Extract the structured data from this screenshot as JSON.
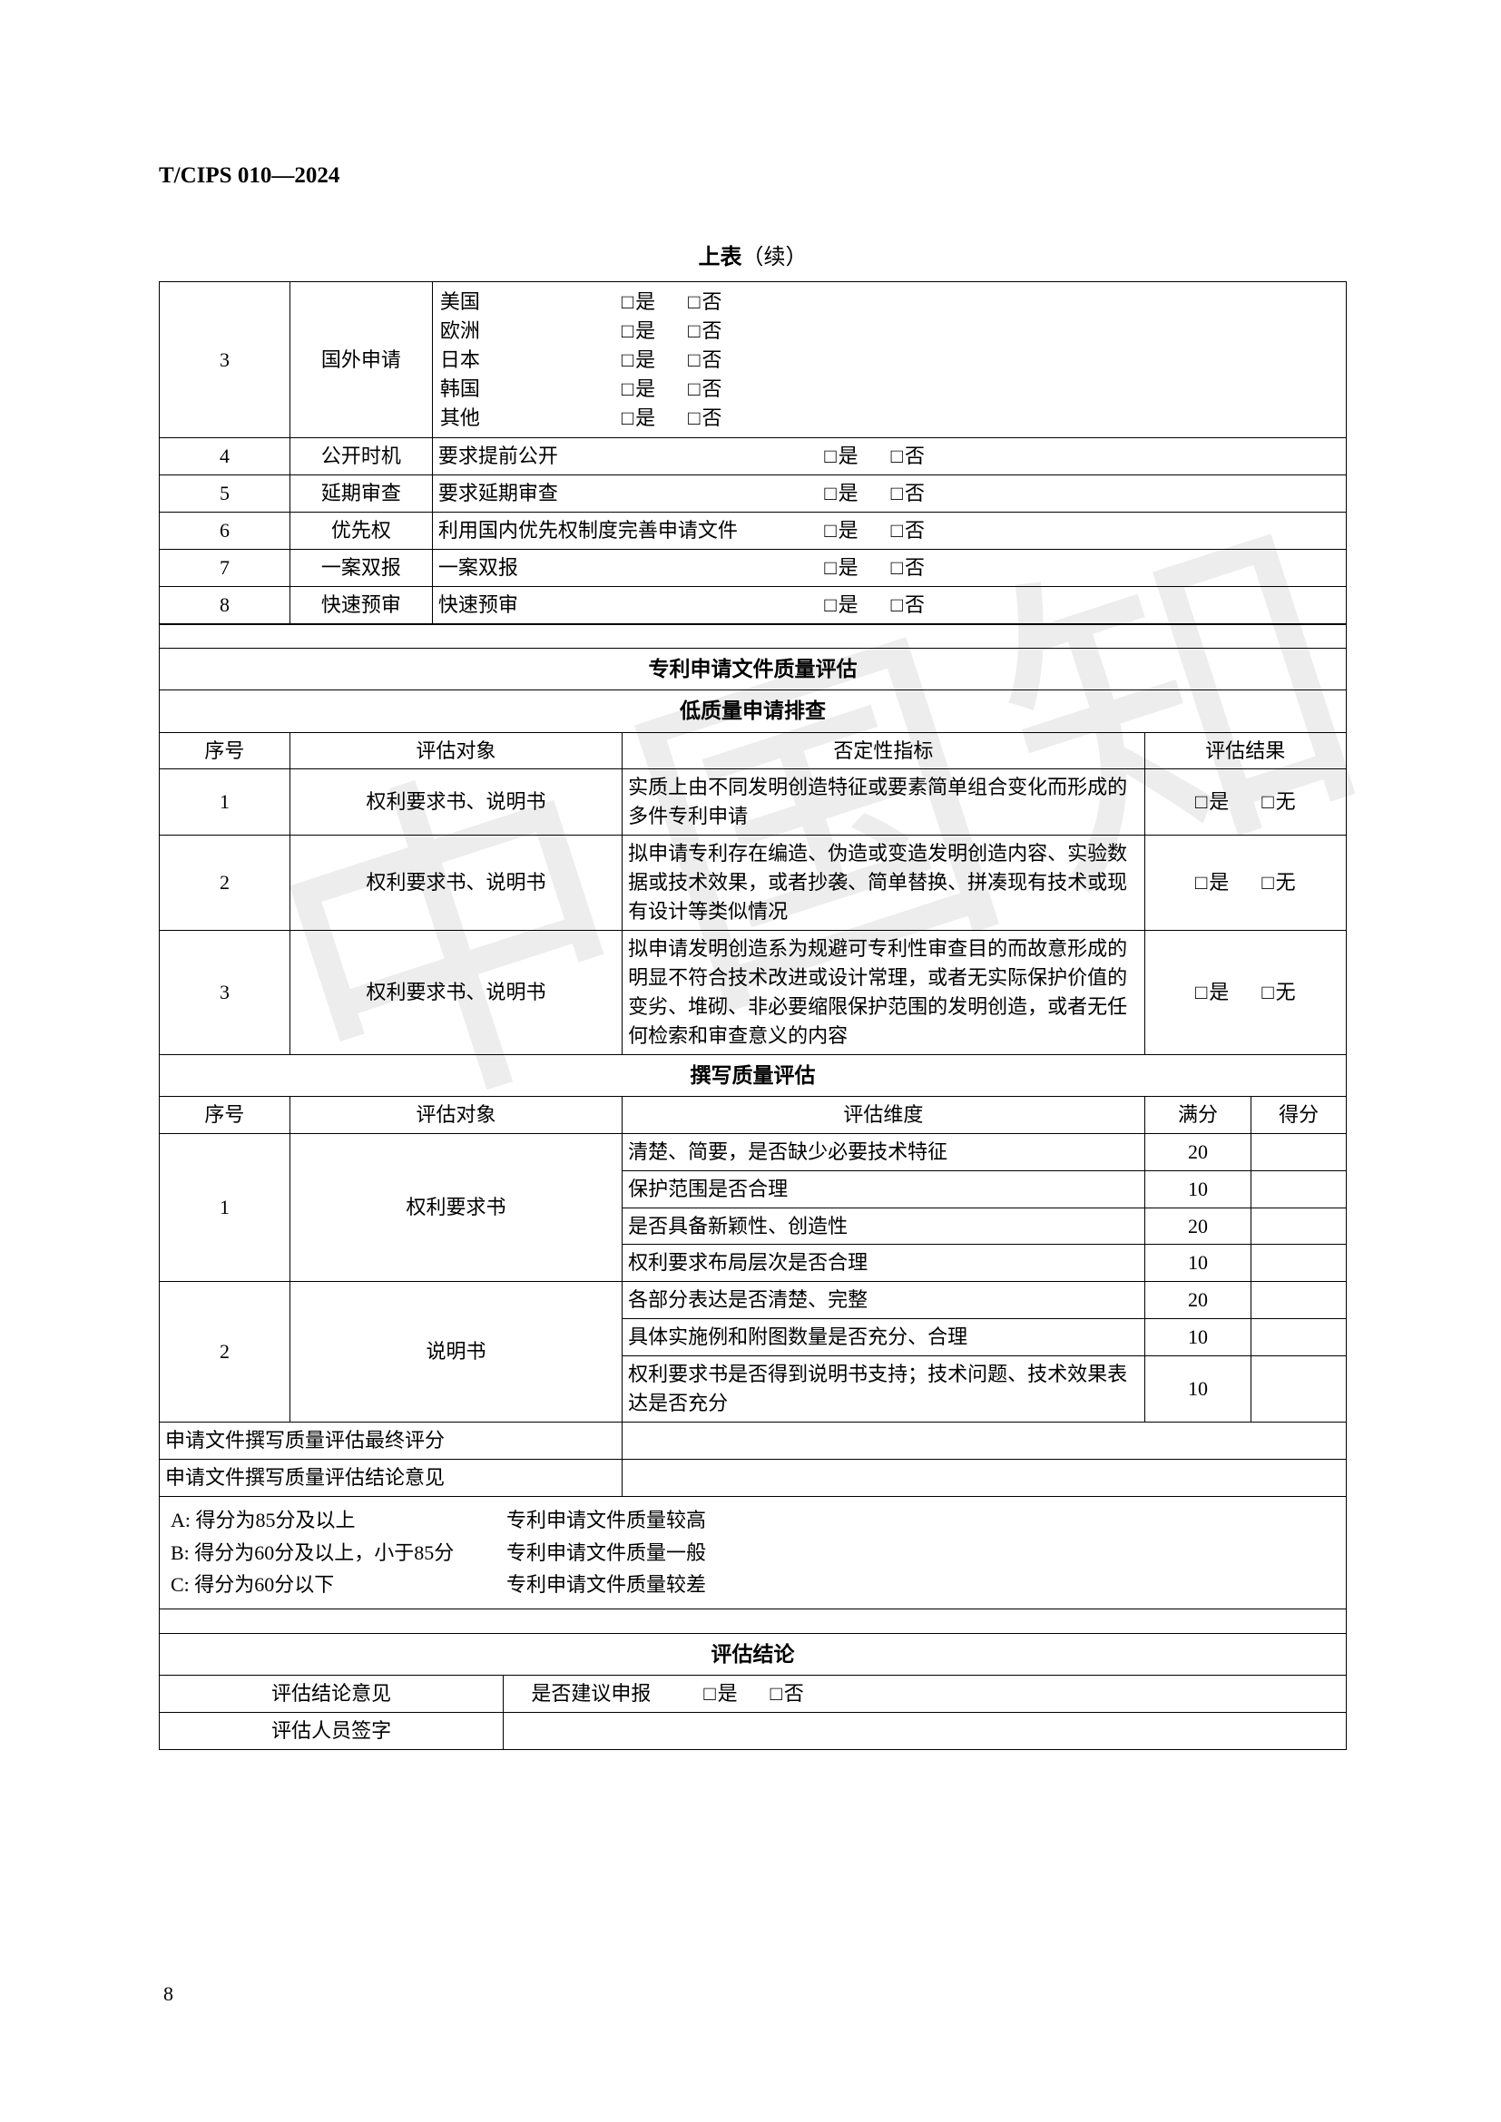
{
  "header_code": "T/CIPS 010—2024",
  "table_title_bold": "上表",
  "table_title_paren": "（续）",
  "checkbox_glyph": "□",
  "yes": "是",
  "no": "否",
  "wu": "无",
  "countries": [
    "美国",
    "欧洲",
    "日本",
    "韩国",
    "其他"
  ],
  "top_rows": [
    {
      "num": "3",
      "type": "国外申请"
    },
    {
      "num": "4",
      "type": "公开时机",
      "content": "要求提前公开"
    },
    {
      "num": "5",
      "type": "延期审查",
      "content": "要求延期审查"
    },
    {
      "num": "6",
      "type": "优先权",
      "content": "利用国内优先权制度完善申请文件"
    },
    {
      "num": "7",
      "type": "一案双报",
      "content": "一案双报"
    },
    {
      "num": "8",
      "type": "快速预审",
      "content": "快速预审"
    }
  ],
  "section_quality_title": "专利申请文件质量评估",
  "section_low_quality_title": "低质量申请排查",
  "low_q_headers": {
    "num": "序号",
    "subject": "评估对象",
    "metric": "否定性指标",
    "result": "评估结果"
  },
  "low_q_rows": [
    {
      "num": "1",
      "subject": "权利要求书、说明书",
      "metric": "实质上由不同发明创造特征或要素简单组合变化而形成的多件专利申请"
    },
    {
      "num": "2",
      "subject": "权利要求书、说明书",
      "metric": "拟申请专利存在编造、伪造或变造发明创造内容、实验数据或技术效果，或者抄袭、简单替换、拼凑现有技术或现有设计等类似情况"
    },
    {
      "num": "3",
      "subject": "权利要求书、说明书",
      "metric": "拟申请发明创造系为规避可专利性审查目的而故意形成的明显不符合技术改进或设计常理，或者无实际保护价值的变劣、堆砌、非必要缩限保护范围的发明创造，或者无任何检索和审查意义的内容"
    }
  ],
  "section_write_quality_title": "撰写质量评估",
  "write_q_headers": {
    "num": "序号",
    "subject": "评估对象",
    "dim": "评估维度",
    "full": "满分",
    "score": "得分"
  },
  "write_groups": [
    {
      "num": "1",
      "subject": "权利要求书",
      "items": [
        {
          "dim": "清楚、简要，是否缺少必要技术特征",
          "full": "20"
        },
        {
          "dim": "保护范围是否合理",
          "full": "10"
        },
        {
          "dim": "是否具备新颖性、创造性",
          "full": "20"
        },
        {
          "dim": "权利要求布局层次是否合理",
          "full": "10"
        }
      ]
    },
    {
      "num": "2",
      "subject": "说明书",
      "items": [
        {
          "dim": "各部分表达是否清楚、完整",
          "full": "20"
        },
        {
          "dim": "具体实施例和附图数量是否充分、合理",
          "full": "10"
        },
        {
          "dim": "权利要求书是否得到说明书支持；技术问题、技术效果表达是否充分",
          "full": "10"
        }
      ]
    }
  ],
  "final_score_label": "申请文件撰写质量评估最终评分",
  "final_opinion_label": "申请文件撰写质量评估结论意见",
  "legend": [
    {
      "a": "A: 得分为85分及以上",
      "b": "专利申请文件质量较高"
    },
    {
      "a": "B: 得分为60分及以上，小于85分",
      "b": "专利申请文件质量一般"
    },
    {
      "a": "C: 得分为60分以下",
      "b": "专利申请文件质量较差"
    }
  ],
  "conclusion_title": "评估结论",
  "conclusion_opinion_label": "评估结论意见",
  "conclusion_suggest_label": "是否建议申报",
  "signature_label": "评估人员签字",
  "page_number": "8",
  "watermark_text": "中国知",
  "col_widths": {
    "top_num": "11%",
    "top_type": "12%",
    "top_content": "77%",
    "lq_num": "11%",
    "lq_subject": "28%",
    "lq_metric": "44%",
    "lq_result": "17%",
    "wq_num": "11%",
    "wq_subject": "28%",
    "wq_dim": "44%",
    "wq_full": "9%",
    "wq_score": "8%",
    "concl_left": "29%",
    "concl_right": "71%"
  }
}
